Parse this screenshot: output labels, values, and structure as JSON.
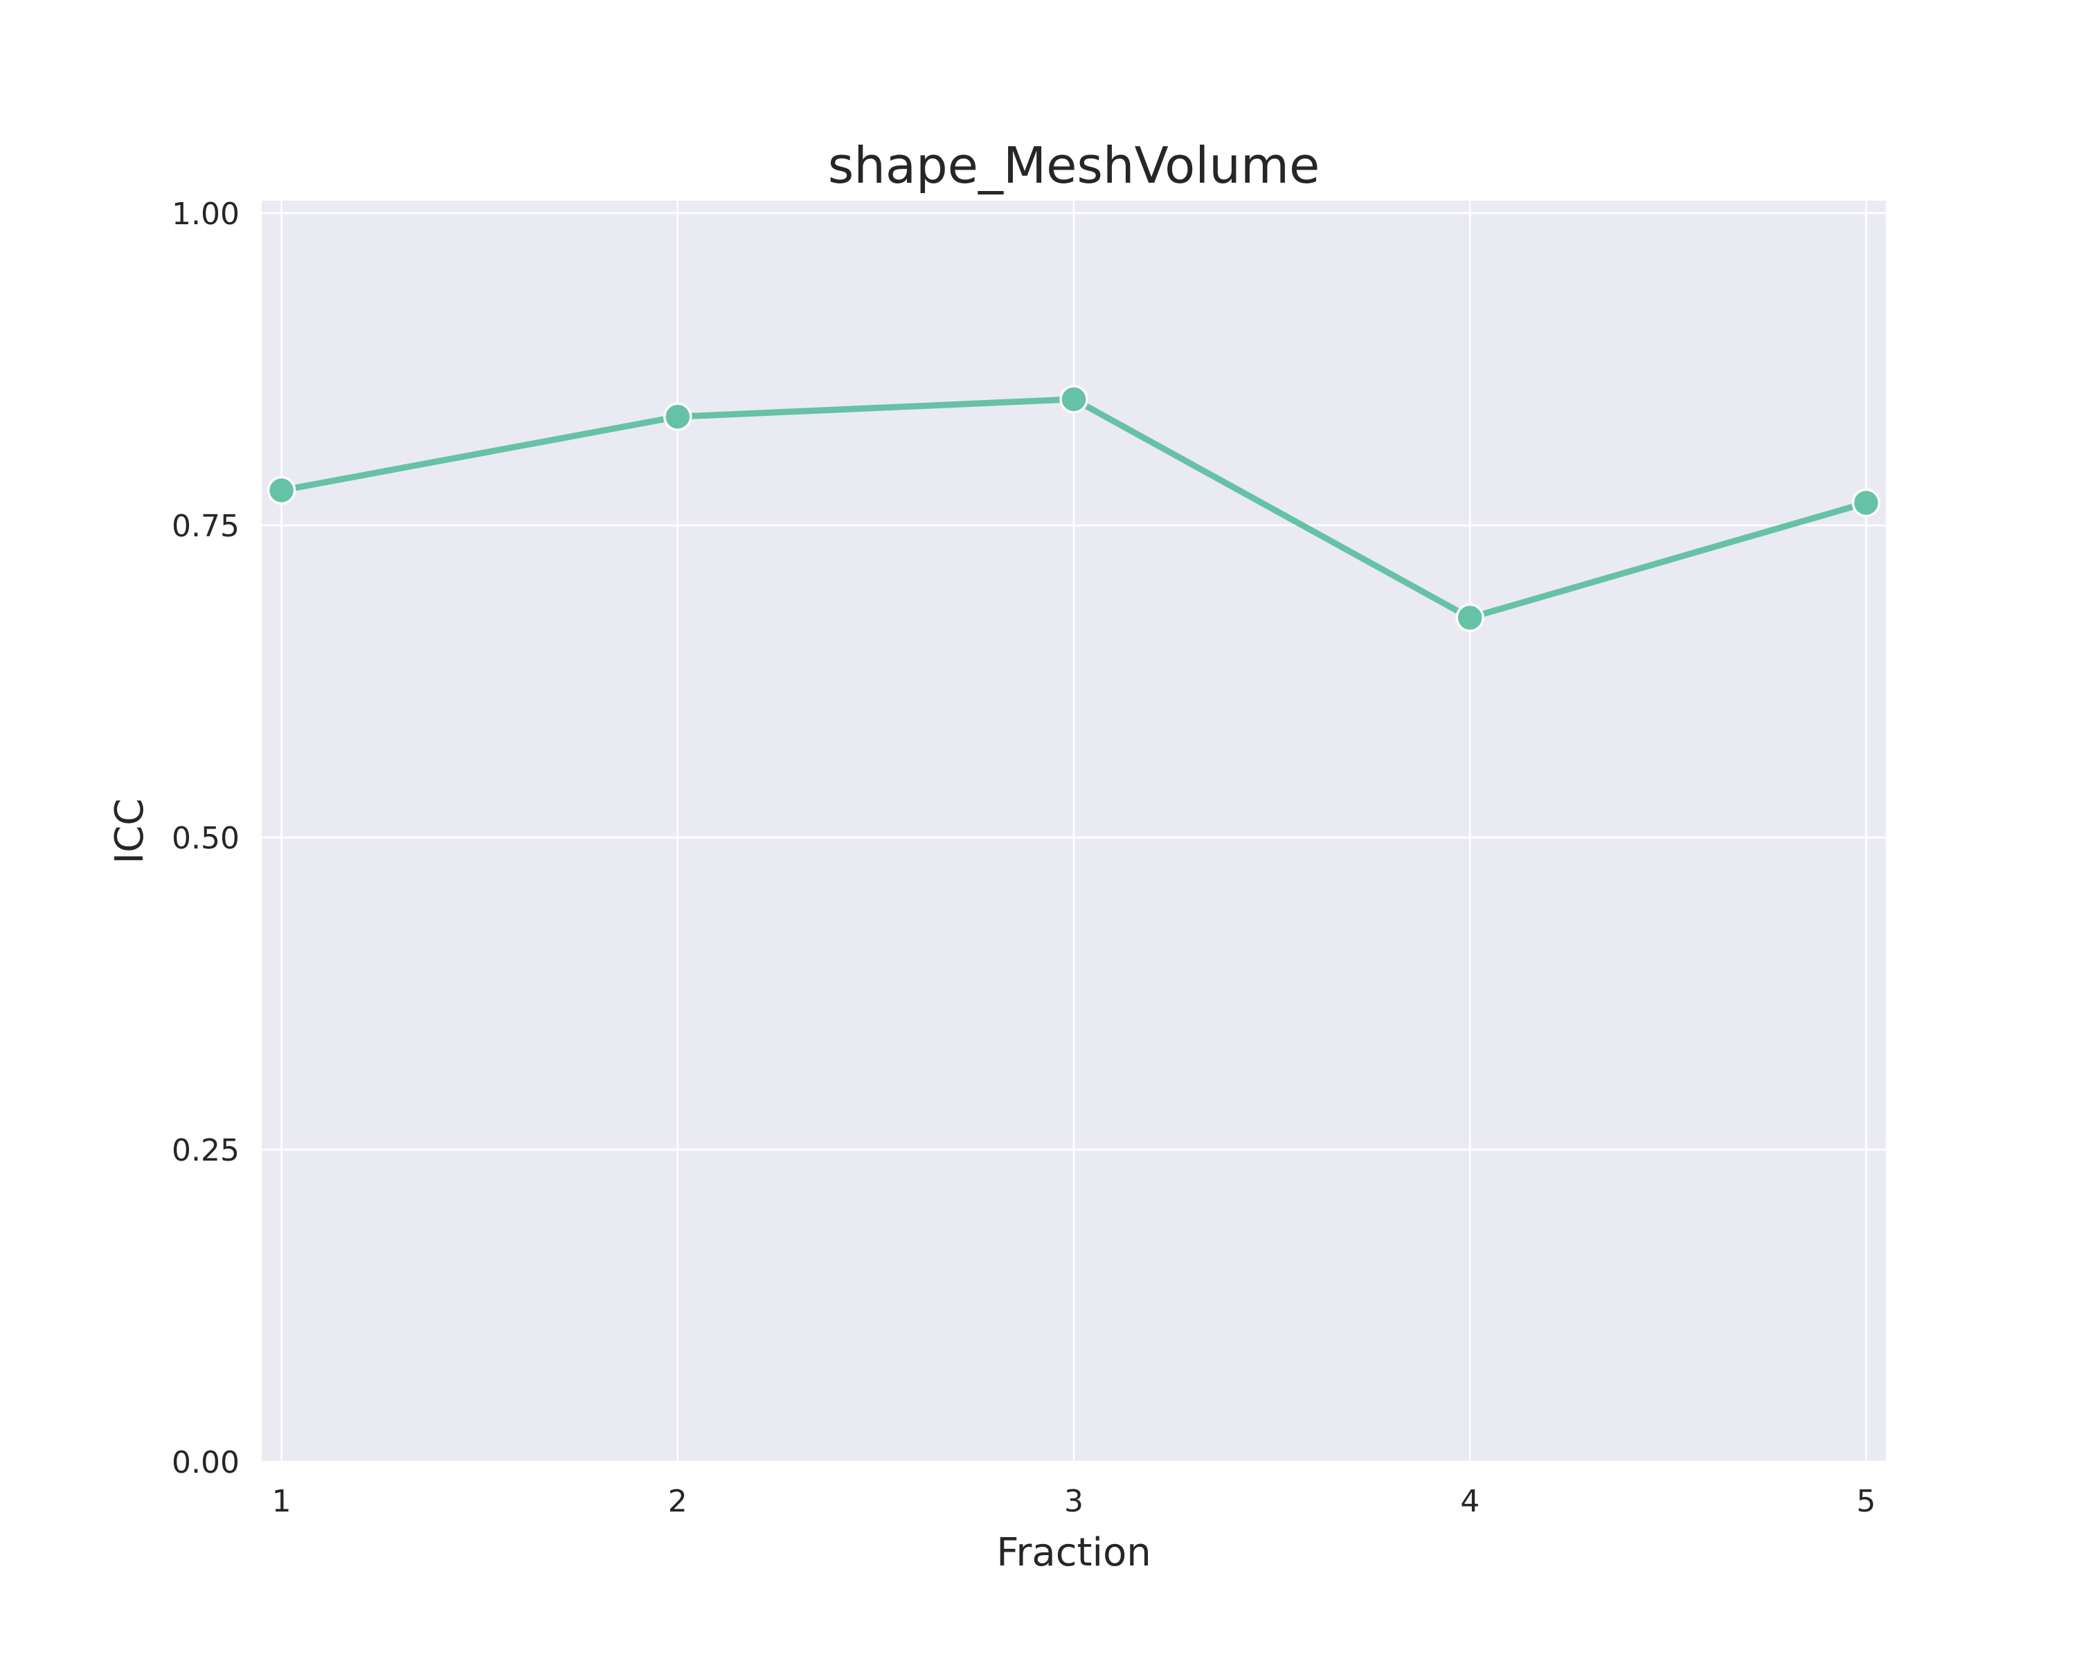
{
  "chart_data": {
    "type": "line",
    "title": "shape_MeshVolume",
    "xlabel": "Fraction",
    "ylabel": "ICC",
    "x": [
      1,
      2,
      3,
      4,
      5
    ],
    "x_tick_labels": [
      "1",
      "2",
      "3",
      "4",
      "5"
    ],
    "series": [
      {
        "values": [
          0.778,
          0.837,
          0.851,
          0.676,
          0.768
        ]
      }
    ],
    "xlim": [
      0.95,
      5.05
    ],
    "ylim": [
      0,
      1.01
    ],
    "y_ticks": [
      0,
      0.25,
      0.5,
      0.75,
      1
    ],
    "y_tick_labels": [
      "0.00",
      "0.25",
      "0.50",
      "0.75",
      "1.00"
    ],
    "grid": true,
    "legend": "none",
    "colors": {
      "line": "#66c2a5",
      "plot_background": "#eaeaf2",
      "grid": "#ffffff",
      "text": "#262626"
    }
  }
}
